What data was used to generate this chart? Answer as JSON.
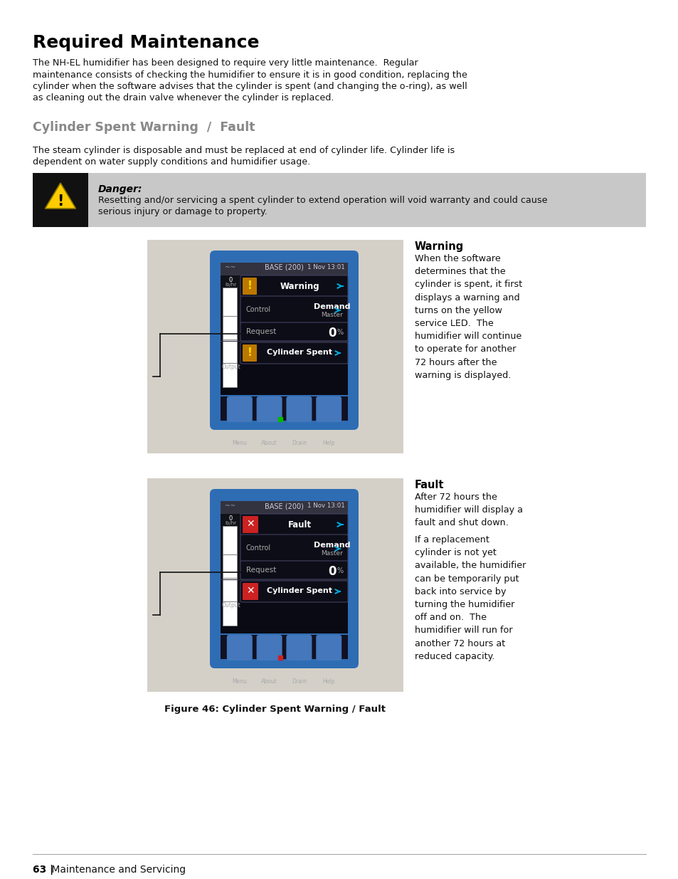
{
  "title": "Required Maintenance",
  "bg_color": "#ffffff",
  "para1_line1": "The NH-EL humidifier has been designed to require very little maintenance.  Regular",
  "para1_line2": "maintenance consists of checking the humidifier to ensure it is in good condition, replacing the",
  "para1_line3": "cylinder when the software advises that the cylinder is spent (and changing the o-ring), as well",
  "para1_line4": "as cleaning out the drain valve whenever the cylinder is replaced.",
  "subtitle": "Cylinder Spent Warning  /  Fault",
  "para2_line1": "The steam cylinder is disposable and must be replaced at end of cylinder life. Cylinder life is",
  "para2_line2": "dependent on water supply conditions and humidifier usage.",
  "danger_label": "Danger:",
  "danger_line1": "Resetting and/or servicing a spent cylinder to extend operation will void warranty and could cause",
  "danger_line2": "serious injury or damage to property.",
  "warning_title": "Warning",
  "warning_text": "When the software\ndetermines that the\ncylinder is spent, it first\ndisplays a warning and\nturns on the yellow\nservice LED.  The\nhumidifier will continue\nto operate for another\n72 hours after the\nwarning is displayed.",
  "fault_title": "Fault",
  "fault_text1": "After 72 hours the\nhumidifier will display a\nfault and shut down.",
  "fault_text2": "If a replacement\ncylinder is not yet\navailable, the humidifier\ncan be temporarily put\nback into service by\nturning the humidifier\noff and on.  The\nhumidifier will run for\nanother 72 hours at\nreduced capacity.",
  "figure_caption": "Figure 46: Cylinder Spent Warning / Fault",
  "page_label": "63 |",
  "page_sublabel": " Maintenance and Servicing",
  "device_blue": "#2e6db4",
  "danger_bg": "#c8c8c8",
  "danger_icon_bg": "#111111",
  "cyan_arrow": "#00aadd",
  "yellow_exclaim": "#e8a000",
  "green_dot": "#00bb00",
  "red_dot": "#cc2222",
  "foot_btn_blue": "#4477bb",
  "screen_dark": "#111118",
  "header_bar": "#333340",
  "btn_bg": "#0d0d18",
  "btn_border": "#404060",
  "gauge_bg": "#ffffff",
  "text_gray": "#aaaaaa"
}
